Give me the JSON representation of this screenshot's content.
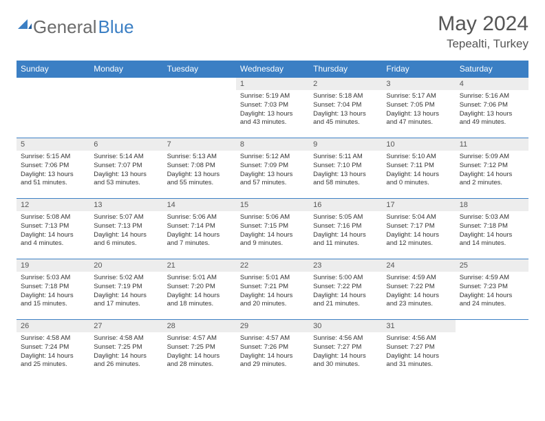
{
  "logo": {
    "gray": "General",
    "blue": "Blue"
  },
  "title": "May 2024",
  "location": "Tepealti, Turkey",
  "colors": {
    "header_bg": "#3b7fc4",
    "header_fg": "#ffffff",
    "daynum_bg": "#ededed",
    "row_border": "#3b7fc4"
  },
  "weekdays": [
    "Sunday",
    "Monday",
    "Tuesday",
    "Wednesday",
    "Thursday",
    "Friday",
    "Saturday"
  ],
  "weeks": [
    [
      {
        "n": "",
        "sr": "",
        "ss": "",
        "dl": ""
      },
      {
        "n": "",
        "sr": "",
        "ss": "",
        "dl": ""
      },
      {
        "n": "",
        "sr": "",
        "ss": "",
        "dl": ""
      },
      {
        "n": "1",
        "sr": "Sunrise: 5:19 AM",
        "ss": "Sunset: 7:03 PM",
        "dl": "Daylight: 13 hours and 43 minutes."
      },
      {
        "n": "2",
        "sr": "Sunrise: 5:18 AM",
        "ss": "Sunset: 7:04 PM",
        "dl": "Daylight: 13 hours and 45 minutes."
      },
      {
        "n": "3",
        "sr": "Sunrise: 5:17 AM",
        "ss": "Sunset: 7:05 PM",
        "dl": "Daylight: 13 hours and 47 minutes."
      },
      {
        "n": "4",
        "sr": "Sunrise: 5:16 AM",
        "ss": "Sunset: 7:06 PM",
        "dl": "Daylight: 13 hours and 49 minutes."
      }
    ],
    [
      {
        "n": "5",
        "sr": "Sunrise: 5:15 AM",
        "ss": "Sunset: 7:06 PM",
        "dl": "Daylight: 13 hours and 51 minutes."
      },
      {
        "n": "6",
        "sr": "Sunrise: 5:14 AM",
        "ss": "Sunset: 7:07 PM",
        "dl": "Daylight: 13 hours and 53 minutes."
      },
      {
        "n": "7",
        "sr": "Sunrise: 5:13 AM",
        "ss": "Sunset: 7:08 PM",
        "dl": "Daylight: 13 hours and 55 minutes."
      },
      {
        "n": "8",
        "sr": "Sunrise: 5:12 AM",
        "ss": "Sunset: 7:09 PM",
        "dl": "Daylight: 13 hours and 57 minutes."
      },
      {
        "n": "9",
        "sr": "Sunrise: 5:11 AM",
        "ss": "Sunset: 7:10 PM",
        "dl": "Daylight: 13 hours and 58 minutes."
      },
      {
        "n": "10",
        "sr": "Sunrise: 5:10 AM",
        "ss": "Sunset: 7:11 PM",
        "dl": "Daylight: 14 hours and 0 minutes."
      },
      {
        "n": "11",
        "sr": "Sunrise: 5:09 AM",
        "ss": "Sunset: 7:12 PM",
        "dl": "Daylight: 14 hours and 2 minutes."
      }
    ],
    [
      {
        "n": "12",
        "sr": "Sunrise: 5:08 AM",
        "ss": "Sunset: 7:13 PM",
        "dl": "Daylight: 14 hours and 4 minutes."
      },
      {
        "n": "13",
        "sr": "Sunrise: 5:07 AM",
        "ss": "Sunset: 7:13 PM",
        "dl": "Daylight: 14 hours and 6 minutes."
      },
      {
        "n": "14",
        "sr": "Sunrise: 5:06 AM",
        "ss": "Sunset: 7:14 PM",
        "dl": "Daylight: 14 hours and 7 minutes."
      },
      {
        "n": "15",
        "sr": "Sunrise: 5:06 AM",
        "ss": "Sunset: 7:15 PM",
        "dl": "Daylight: 14 hours and 9 minutes."
      },
      {
        "n": "16",
        "sr": "Sunrise: 5:05 AM",
        "ss": "Sunset: 7:16 PM",
        "dl": "Daylight: 14 hours and 11 minutes."
      },
      {
        "n": "17",
        "sr": "Sunrise: 5:04 AM",
        "ss": "Sunset: 7:17 PM",
        "dl": "Daylight: 14 hours and 12 minutes."
      },
      {
        "n": "18",
        "sr": "Sunrise: 5:03 AM",
        "ss": "Sunset: 7:18 PM",
        "dl": "Daylight: 14 hours and 14 minutes."
      }
    ],
    [
      {
        "n": "19",
        "sr": "Sunrise: 5:03 AM",
        "ss": "Sunset: 7:18 PM",
        "dl": "Daylight: 14 hours and 15 minutes."
      },
      {
        "n": "20",
        "sr": "Sunrise: 5:02 AM",
        "ss": "Sunset: 7:19 PM",
        "dl": "Daylight: 14 hours and 17 minutes."
      },
      {
        "n": "21",
        "sr": "Sunrise: 5:01 AM",
        "ss": "Sunset: 7:20 PM",
        "dl": "Daylight: 14 hours and 18 minutes."
      },
      {
        "n": "22",
        "sr": "Sunrise: 5:01 AM",
        "ss": "Sunset: 7:21 PM",
        "dl": "Daylight: 14 hours and 20 minutes."
      },
      {
        "n": "23",
        "sr": "Sunrise: 5:00 AM",
        "ss": "Sunset: 7:22 PM",
        "dl": "Daylight: 14 hours and 21 minutes."
      },
      {
        "n": "24",
        "sr": "Sunrise: 4:59 AM",
        "ss": "Sunset: 7:22 PM",
        "dl": "Daylight: 14 hours and 23 minutes."
      },
      {
        "n": "25",
        "sr": "Sunrise: 4:59 AM",
        "ss": "Sunset: 7:23 PM",
        "dl": "Daylight: 14 hours and 24 minutes."
      }
    ],
    [
      {
        "n": "26",
        "sr": "Sunrise: 4:58 AM",
        "ss": "Sunset: 7:24 PM",
        "dl": "Daylight: 14 hours and 25 minutes."
      },
      {
        "n": "27",
        "sr": "Sunrise: 4:58 AM",
        "ss": "Sunset: 7:25 PM",
        "dl": "Daylight: 14 hours and 26 minutes."
      },
      {
        "n": "28",
        "sr": "Sunrise: 4:57 AM",
        "ss": "Sunset: 7:25 PM",
        "dl": "Daylight: 14 hours and 28 minutes."
      },
      {
        "n": "29",
        "sr": "Sunrise: 4:57 AM",
        "ss": "Sunset: 7:26 PM",
        "dl": "Daylight: 14 hours and 29 minutes."
      },
      {
        "n": "30",
        "sr": "Sunrise: 4:56 AM",
        "ss": "Sunset: 7:27 PM",
        "dl": "Daylight: 14 hours and 30 minutes."
      },
      {
        "n": "31",
        "sr": "Sunrise: 4:56 AM",
        "ss": "Sunset: 7:27 PM",
        "dl": "Daylight: 14 hours and 31 minutes."
      },
      {
        "n": "",
        "sr": "",
        "ss": "",
        "dl": ""
      }
    ]
  ]
}
